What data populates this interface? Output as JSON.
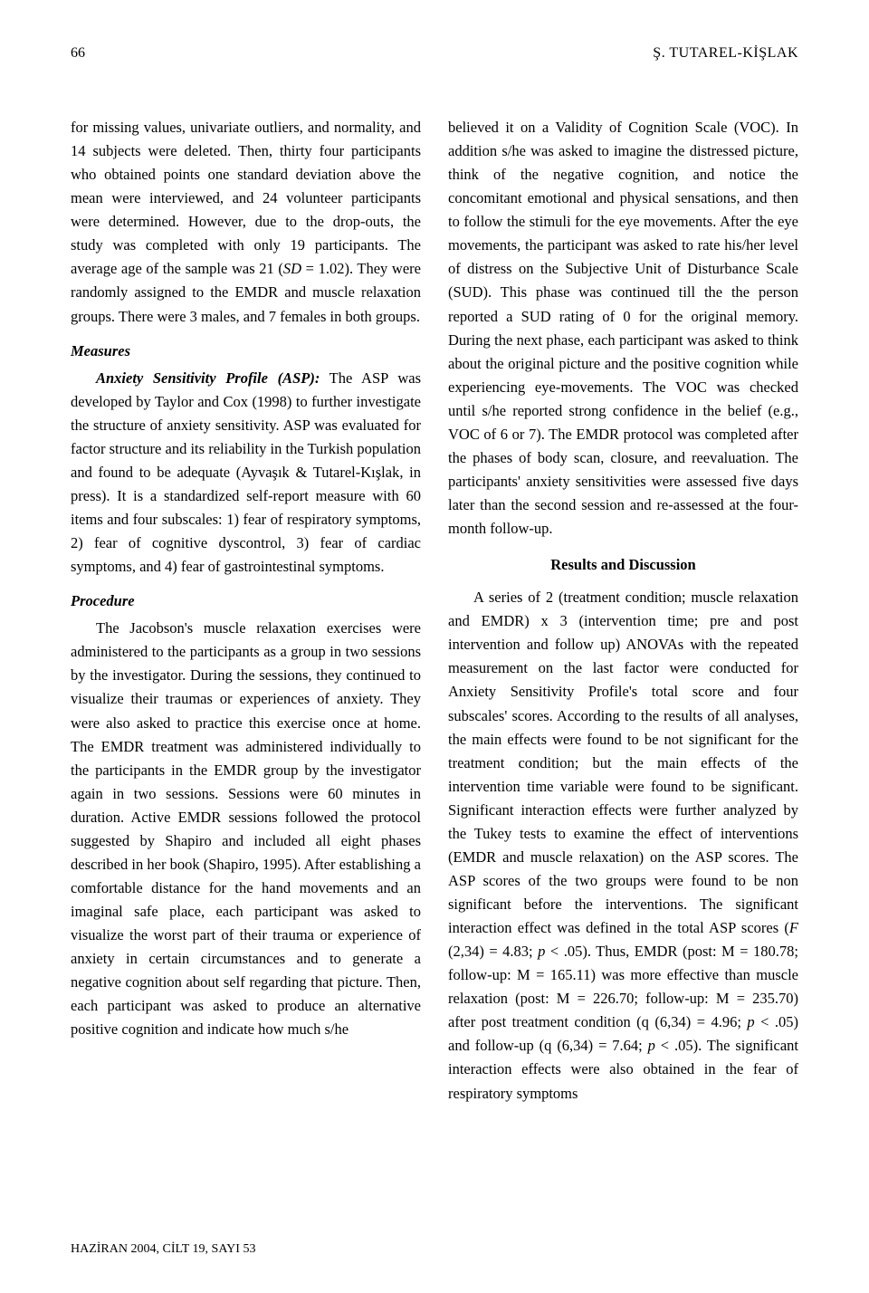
{
  "header": {
    "page_number": "66",
    "author": "Ş. TUTAREL-KİŞLAK"
  },
  "left_column": {
    "para1_a": "for missing values, univariate outliers, and normality, and 14 subjects were deleted. Then, thirty four participants who obtained points one standard deviation above the mean were interviewed, and 24 volunteer participants were determined. However, due to the drop-outs, the study was completed with only 19 participants. The average age of the sample was 21 (",
    "para1_sd": "SD",
    "para1_b": " = 1.02). They were randomly assigned to the EMDR and muscle relaxation groups. There were 3 males, and 7 females in both groups.",
    "measures_heading": "Measures",
    "asp_runin": "Anxiety Sensitivity Profile (ASP):",
    "asp_para": " The ASP was developed by Taylor and Cox (1998) to further investigate the structure of anxiety sensitivity. ASP was evaluated for factor structure and its reliability in the Turkish population and found to be adequate (Ayvaşık & Tutarel-Kışlak, in press). It is a standardized self-report measure with 60 items and four subscales: 1) fear of respiratory symptoms, 2) fear of cognitive dyscontrol, 3) fear of cardiac symptoms, and 4) fear of gastrointestinal symptoms.",
    "procedure_heading": "Procedure",
    "procedure_para": "The Jacobson's muscle relaxation exercises were administered to the participants as a group in two sessions by the investigator. During the sessions, they continued to visualize their traumas or experiences of anxiety. They were also asked to practice this exercise once at home. The EMDR treatment was administered individually to the participants in the EMDR group by the investigator again in two sessions. Sessions were 60 minutes in duration. Active EMDR sessions followed the protocol suggested by Shapiro and included all eight phases described in her book (Shapiro, 1995). After establishing a comfortable distance for the hand movements and an imaginal safe place, each participant was asked to visualize the worst part of their trauma or experience of anxiety in certain circumstances and to generate a negative cognition about self regarding that picture. Then, each participant was asked to produce an alternative positive cognition and indicate how much s/he"
  },
  "right_column": {
    "para1": "believed it on a Validity of Cognition Scale (VOC). In addition s/he was asked to imagine the distressed picture, think of the negative cognition, and notice the concomitant emotional and physical sensations, and then to follow the stimuli for the eye movements. After the eye movements, the participant was asked to rate his/her level of distress on the Subjective Unit of Disturbance Scale (SUD). This phase was continued till the the person reported a SUD rating of 0 for the original memory.  During the next phase, each participant was asked to think about the original picture and the positive cognition while experiencing eye-movements. The VOC  was checked until s/he reported strong confidence in the belief (e.g., VOC of 6 or 7). The EMDR protocol was completed after the phases of body scan, closure, and reevaluation. The participants' anxiety sensitivities were assessed five days later than the second session and re-assessed at the four-month follow-up.",
    "results_heading": "Results and Discussion",
    "results_para_a": "A series of 2 (treatment condition; muscle relaxation and EMDR) x 3 (intervention time; pre and post intervention and follow up) ANOVAs with the repeated measurement on the last factor were conducted for Anxiety Sensitivity Profile's total score and four subscales' scores. According to the results of all analyses, the main effects were found to be not significant for the treatment condition; but the main effects of the intervention time variable were found to be significant. Significant interaction effects were further analyzed by the Tukey tests to examine the effect of interventions (EMDR and muscle relaxation) on the ASP scores. The ASP scores of the two groups were found to be non significant before the interventions. The significant interaction effect was defined in the total ASP scores (",
    "results_F": "F",
    "results_para_b": " (2,34) = 4.83; ",
    "results_p1": "p",
    "results_para_c": " < .05). Thus, EMDR  (post: M = 180.78; follow-up: M = 165.11) was more effective than muscle relaxation (post: M = 226.70; follow-up: M = 235.70) after post treatment condition (q (6,34) = 4.96; ",
    "results_p2": "p",
    "results_para_d": " < .05) and follow-up (q (6,34) = 7.64; ",
    "results_p3": "p",
    "results_para_e": " < .05).  The significant interaction effects were also obtained in the fear of respiratory symptoms"
  },
  "footer": {
    "text": "HAZİRAN 2004, CİLT 19, SAYI 53"
  }
}
